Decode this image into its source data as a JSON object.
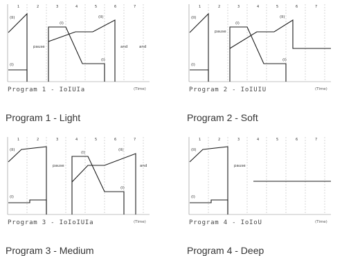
{
  "numbers": [
    "1",
    "2",
    "3",
    "4",
    "5",
    "6",
    "7"
  ],
  "labels": {
    "intensity_low": "(I)",
    "intensity_high": "(II)",
    "pause": "pause",
    "end": "end",
    "time": "(Time)"
  },
  "panels": [
    {
      "title": "Program 1 - IoIUIa",
      "caption": "Program 1 - Light",
      "end_texts": [
        "and",
        "and"
      ]
    },
    {
      "title": "Program 2 - IoIUIU",
      "caption": "Program 2 - Soft",
      "end_texts": []
    },
    {
      "title": "Program 3 - IoIoIUIa",
      "caption": "Program 3 - Medium",
      "end_texts": [
        "and"
      ]
    },
    {
      "title": "Program 4 - IoIoU",
      "caption": "Program 4 - Deep",
      "end_texts": []
    }
  ],
  "colors": {
    "line": "#1a1a1a",
    "divider": "#bbbbbb",
    "axis": "#888888"
  }
}
